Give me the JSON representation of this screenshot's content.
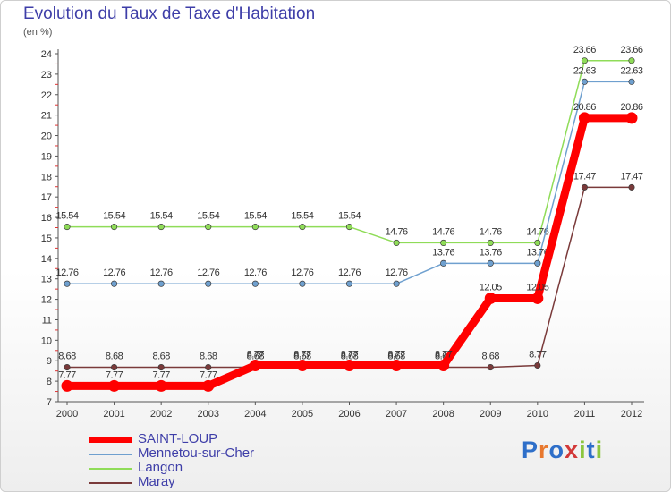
{
  "title": "Evolution du Taux de Taxe d'Habitation",
  "unit_label": "(en %)",
  "logo": {
    "text": "Proxiti",
    "letters": [
      "P",
      "r",
      "o",
      "x",
      "i",
      "t",
      "i"
    ],
    "colors": [
      "#2e6fc9",
      "#e8782e",
      "#2e6fc9",
      "#d23838",
      "#8cc63f",
      "#2e6fc9",
      "#8cc63f"
    ]
  },
  "chart_data": {
    "type": "line",
    "title": "Evolution du Taux de Taxe d'Habitation",
    "xlabel": "",
    "ylabel": "(en %)",
    "categories": [
      "2000",
      "2001",
      "2002",
      "2003",
      "2004",
      "2005",
      "2006",
      "2007",
      "2008",
      "2009",
      "2010",
      "2011",
      "2012"
    ],
    "ylim": [
      7,
      24
    ],
    "yticks": [
      7,
      8,
      9,
      10,
      11,
      12,
      13,
      14,
      15,
      16,
      17,
      18,
      19,
      20,
      21,
      22,
      23,
      24
    ],
    "grid": false,
    "legend_position": "bottom-left",
    "series": [
      {
        "name": "SAINT-LOUP",
        "color": "#ff0000",
        "values": [
          7.77,
          7.77,
          7.77,
          7.77,
          8.77,
          8.77,
          8.77,
          8.77,
          8.77,
          12.05,
          12.05,
          20.86,
          20.86
        ],
        "labels": [
          "7.77",
          "7.77",
          "7.77",
          "7.77",
          "8.77",
          "8.77",
          "8.77",
          "8.77",
          "8.77",
          "12.05",
          "12.05",
          "20.86",
          "20.86"
        ]
      },
      {
        "name": "Mennetou-sur-Cher",
        "color": "#6fa0cf",
        "values": [
          12.76,
          12.76,
          12.76,
          12.76,
          12.76,
          12.76,
          12.76,
          12.76,
          13.76,
          13.76,
          13.76,
          22.63,
          22.63
        ],
        "labels": [
          "12.76",
          "12.76",
          "12.76",
          "12.76",
          "12.76",
          "12.76",
          "12.76",
          "12.76",
          "13.76",
          "13.76",
          "13.76",
          "22.63",
          "22.63"
        ]
      },
      {
        "name": "Langon",
        "color": "#8fdc58",
        "values": [
          15.54,
          15.54,
          15.54,
          15.54,
          15.54,
          15.54,
          15.54,
          14.76,
          14.76,
          14.76,
          14.76,
          23.66,
          23.66
        ],
        "labels": [
          "15.54",
          "15.54",
          "15.54",
          "15.54",
          "15.54",
          "15.54",
          "15.54",
          "14.76",
          "14.76",
          "14.76",
          "14.76",
          "23.66",
          "23.66"
        ]
      },
      {
        "name": "Maray",
        "color": "#7a3a3a",
        "values": [
          8.68,
          8.68,
          8.68,
          8.68,
          8.68,
          8.68,
          8.68,
          8.68,
          8.68,
          8.68,
          8.77,
          17.47,
          17.47
        ],
        "labels": [
          "8.68",
          "8.68",
          "8.68",
          "8.68",
          "8.68",
          "8.68",
          "8.68",
          "8.68",
          "8.68",
          "8.68",
          "8.77",
          "17.47",
          "17.47"
        ]
      }
    ]
  }
}
